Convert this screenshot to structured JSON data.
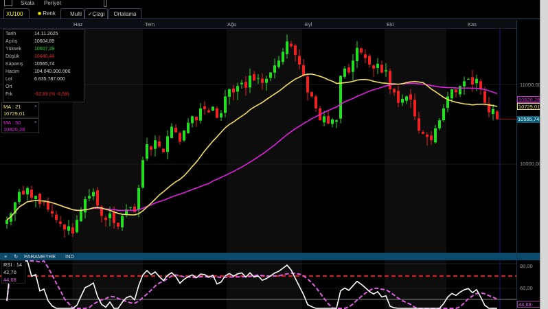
{
  "toolbar": {
    "scale": "Skala",
    "period": "Periyot"
  },
  "tabs": {
    "symbol": "XU100",
    "color": "Renk",
    "multi": "Multi",
    "line": "Çizgi",
    "average": "Ortalama"
  },
  "months": [
    "Haz",
    "Tem",
    "Ağu",
    "Eyl",
    "Eki",
    "Kas"
  ],
  "info": {
    "rows": [
      {
        "label": "Tarih",
        "value": "14.11.2025"
      },
      {
        "label": "Açılış",
        "value": "10604,89"
      },
      {
        "label": "Yüksek",
        "value": "10607,39"
      },
      {
        "label": "Düşük",
        "value": "10440,44"
      },
      {
        "label": "Kapanış",
        "value": "10565,74"
      },
      {
        "label": "Hacim",
        "value": "104.040.900.000"
      },
      {
        "label": "Lot",
        "value": "6.635.787.000"
      },
      {
        "label": "Ort",
        "value": ""
      },
      {
        "label": "Frk",
        "value": "-62,89 (% -0,59)"
      }
    ]
  },
  "ma21": {
    "label": "MA : 21",
    "value": "10729,01",
    "color": "#f0e060"
  },
  "ma50": {
    "label": "MA : 50",
    "value": "10820,28",
    "color": "#e020e0"
  },
  "axis": {
    "ticks": [
      "11000,00",
      "10000,00"
    ],
    "last_price": "10565,74"
  },
  "rsi_panel": {
    "close_icon": "×",
    "refresh_icon": "↻",
    "param": "PARAMETRE",
    "ind": "IND",
    "label": "RSI : 14",
    "value": "42,70",
    "signal": "44,68",
    "ticks": [
      "80,00",
      "60,00"
    ],
    "level": 70
  },
  "colors": {
    "up": "#22dd22",
    "down": "#ee2222",
    "ma21": "#f0e060",
    "ma50": "#e020e0",
    "rsi": "#ffffff",
    "rsi_signal": "#e060e0",
    "level": "#ee1111"
  },
  "chart_data": {
    "type": "candlestick",
    "symbol": "XU100",
    "y_ticks": [
      10000,
      11000
    ],
    "closes": [
      9300,
      9380,
      9520,
      9650,
      9620,
      9700,
      9580,
      9600,
      9500,
      9520,
      9430,
      9380,
      9300,
      9250,
      9180,
      9220,
      9130,
      9300,
      9420,
      9560,
      9600,
      9650,
      9480,
      9350,
      9300,
      9380,
      9260,
      9215,
      9350,
      9430,
      9460,
      9400,
      9700,
      10050,
      10250,
      10180,
      10300,
      10220,
      10150,
      10350,
      10470,
      10400,
      10280,
      10420,
      10520,
      10600,
      10550,
      10700,
      10690,
      10650,
      10720,
      10580,
      10640,
      10850,
      10940,
      10900,
      10980,
      11020,
      10960,
      11110,
      11050,
      11080,
      11020,
      11070,
      11150,
      11240,
      11300,
      11410,
      11540,
      11480,
      11370,
      11250,
      11110,
      10900,
      10850,
      10700,
      10550,
      10600,
      10510,
      10560,
      10550,
      11110,
      11200,
      11150,
      11300,
      11460,
      11400,
      11330,
      11250,
      11200,
      11260,
      11150,
      11180,
      10940,
      10900,
      10770,
      10820,
      10850,
      10810,
      10600,
      10420,
      10380,
      10340,
      10300,
      10450,
      10550,
      10700,
      10850,
      10940,
      10900,
      10980,
      11040,
      11070,
      11000,
      11070,
      10940,
      10770,
      10650,
      10690,
      10565.74
    ]
  }
}
